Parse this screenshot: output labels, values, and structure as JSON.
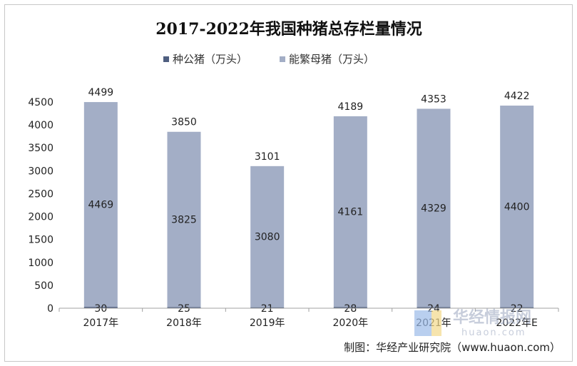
{
  "chart_data": {
    "type": "bar",
    "stacked": true,
    "title": "2017-2022年我国种猪总存栏量情况",
    "categories": [
      "2017年",
      "2018年",
      "2019年",
      "2020年",
      "2021年",
      "2022年E"
    ],
    "series": [
      {
        "name": "种公猪（万头）",
        "values": [
          30,
          25,
          21,
          28,
          24,
          22
        ],
        "color": "#4f5f80"
      },
      {
        "name": "能繁母猪（万头）",
        "values": [
          4469,
          3825,
          3080,
          4161,
          4329,
          4400
        ],
        "color": "#a3aec6"
      }
    ],
    "totals": [
      4499,
      3850,
      3101,
      4189,
      4353,
      4422
    ],
    "ylim": [
      0,
      4500
    ],
    "yticks": [
      0,
      500,
      1000,
      1500,
      2000,
      2500,
      3000,
      3500,
      4000,
      4500
    ],
    "legend_position": "top",
    "grid": false
  },
  "source": "制图：华经产业研究院（www.huaon.com）",
  "watermark": {
    "text": "华经情报网",
    "sub": "huaon.com"
  }
}
